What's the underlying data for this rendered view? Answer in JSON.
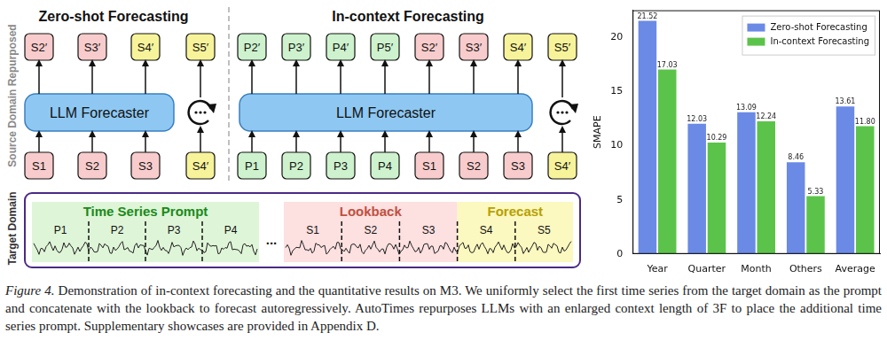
{
  "diagram": {
    "side_labels": {
      "source": "Source Domain Repurposed",
      "target": "Target Domain"
    },
    "zero_shot": {
      "title": "Zero-shot Forecasting",
      "model": "LLM Forecaster",
      "outputs": [
        {
          "label": "S2′",
          "color": "#f8cccc"
        },
        {
          "label": "S3′",
          "color": "#f8cccc"
        },
        {
          "label": "S4′",
          "color": "#f7f39a"
        },
        {
          "label": "S5′",
          "color": "#f7f39a"
        }
      ],
      "inputs": [
        {
          "label": "S1",
          "color": "#f8cccc"
        },
        {
          "label": "S2",
          "color": "#f8cccc"
        },
        {
          "label": "S3",
          "color": "#f8cccc"
        },
        {
          "label": "S4′",
          "color": "#f7f39a"
        }
      ]
    },
    "in_context": {
      "title": "In-context Forecasting",
      "model": "LLM Forecaster",
      "outputs": [
        {
          "label": "P2′",
          "color": "#cdf2cd"
        },
        {
          "label": "P3′",
          "color": "#cdf2cd"
        },
        {
          "label": "P4′",
          "color": "#cdf2cd"
        },
        {
          "label": "P5′",
          "color": "#cdf2cd"
        },
        {
          "label": "S2′",
          "color": "#f8cccc"
        },
        {
          "label": "S3′",
          "color": "#f8cccc"
        },
        {
          "label": "S4′",
          "color": "#f7f39a"
        },
        {
          "label": "S5′",
          "color": "#f7f39a"
        }
      ],
      "inputs": [
        {
          "label": "P1",
          "color": "#cdf2cd"
        },
        {
          "label": "P2",
          "color": "#cdf2cd"
        },
        {
          "label": "P3",
          "color": "#cdf2cd"
        },
        {
          "label": "P4",
          "color": "#cdf2cd"
        },
        {
          "label": "S1",
          "color": "#f8cccc"
        },
        {
          "label": "S2",
          "color": "#f8cccc"
        },
        {
          "label": "S3",
          "color": "#f8cccc"
        },
        {
          "label": "S4′",
          "color": "#f7f39a"
        }
      ]
    },
    "target_panel": {
      "prompt_title": "Time Series Prompt",
      "prompt_segments": [
        "P1",
        "P2",
        "P3",
        "P4"
      ],
      "ellipsis": "...",
      "lookback_title": "Lookback",
      "lookback_segments": [
        "S1",
        "S2",
        "S3"
      ],
      "forecast_title": "Forecast",
      "forecast_segments": [
        "S4",
        "S5"
      ]
    }
  },
  "chart_data": {
    "type": "bar",
    "categories": [
      "Year",
      "Quarter",
      "Month",
      "Others",
      "Average"
    ],
    "y_label": "SMAPE",
    "series": [
      {
        "name": "Zero-shot Forecasting",
        "color": "#6a8ae6",
        "values": [
          21.52,
          12.03,
          13.09,
          8.46,
          13.61
        ],
        "value_labels": [
          "21.52",
          "12.03",
          "13.09",
          "8.46",
          "13.61"
        ]
      },
      {
        "name": "In-context Forecasting",
        "color": "#5cc34a",
        "values": [
          17.03,
          10.29,
          12.24,
          5.33,
          11.8
        ],
        "value_labels": [
          "17.03",
          "10.29",
          "12.24",
          "5.33",
          "11.80"
        ]
      }
    ],
    "ylim": [
      0,
      22.5
    ],
    "yticks": [
      0,
      5,
      10,
      15,
      20
    ],
    "grid": false,
    "legend": "upper right",
    "data_labels": true
  },
  "caption": {
    "label": "Figure 4.",
    "text": "Demonstration of in-context forecasting and the quantitative results on M3. We uniformly select the first time series from the target domain as the prompt and concatenate with the lookback to forecast autoregressively. AutoTimes repurposes LLMs with an enlarged context length of 3F to place the additional time series prompt. Supplementary showcases are provided in Appendix D."
  }
}
